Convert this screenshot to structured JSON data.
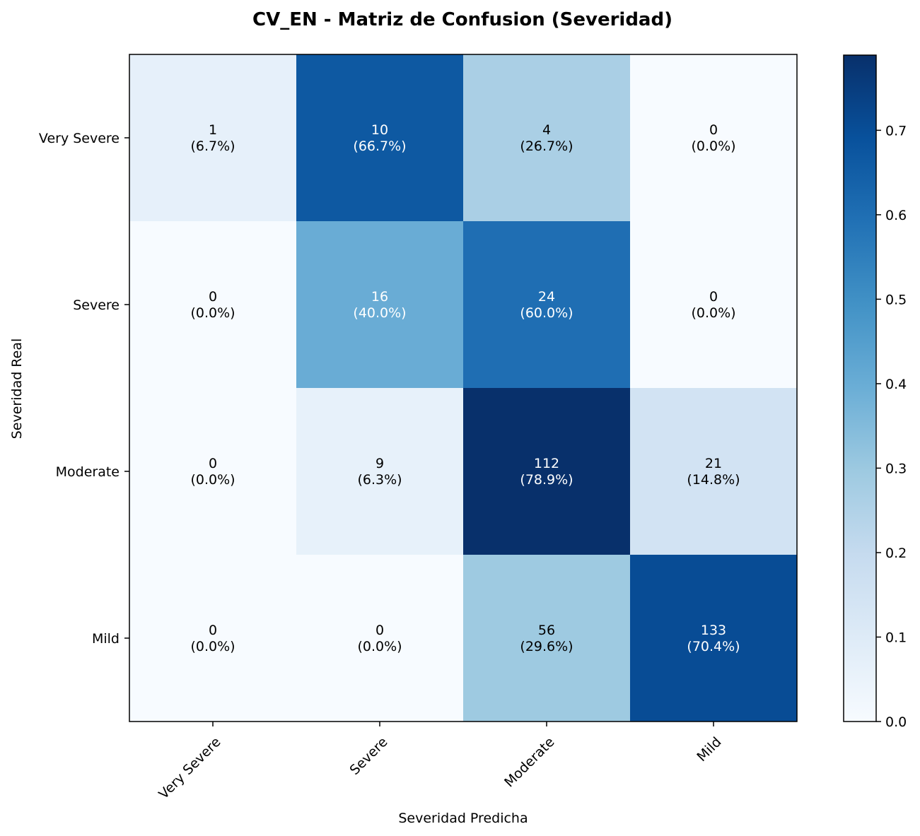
{
  "chart_data": {
    "type": "heatmap",
    "title": "CV_EN - Matriz de Confusion (Severidad)",
    "xlabel": "Severidad Predicha",
    "ylabel": "Severidad Real",
    "x_categories": [
      "Very Severe",
      "Severe",
      "Moderate",
      "Mild"
    ],
    "y_categories": [
      "Very Severe",
      "Severe",
      "Moderate",
      "Mild"
    ],
    "counts": [
      [
        1,
        10,
        4,
        0
      ],
      [
        0,
        16,
        24,
        0
      ],
      [
        0,
        9,
        112,
        21
      ],
      [
        0,
        0,
        56,
        133
      ]
    ],
    "percent_labels": [
      [
        "(6.7%)",
        "(66.7%)",
        "(26.7%)",
        "(0.0%)"
      ],
      [
        "(0.0%)",
        "(40.0%)",
        "(60.0%)",
        "(0.0%)"
      ],
      [
        "(0.0%)",
        "(6.3%)",
        "(78.9%)",
        "(14.8%)"
      ],
      [
        "(0.0%)",
        "(0.0%)",
        "(29.6%)",
        "(70.4%)"
      ]
    ],
    "values": [
      [
        0.067,
        0.667,
        0.267,
        0.0
      ],
      [
        0.0,
        0.4,
        0.6,
        0.0
      ],
      [
        0.0,
        0.063,
        0.789,
        0.148
      ],
      [
        0.0,
        0.0,
        0.296,
        0.704
      ]
    ],
    "colorbar": {
      "min": 0.0,
      "max": 0.789,
      "ticks": [
        0.0,
        0.1,
        0.2,
        0.3,
        0.4,
        0.5,
        0.6,
        0.7
      ],
      "tick_labels": [
        "0.0",
        "0.1",
        "0.2",
        "0.3",
        "0.4",
        "0.5",
        "0.6",
        "0.7"
      ]
    },
    "colormap": "Blues",
    "grid": false,
    "legend": "none",
    "text_color_dark": "#000000",
    "text_color_light": "#ffffff"
  }
}
